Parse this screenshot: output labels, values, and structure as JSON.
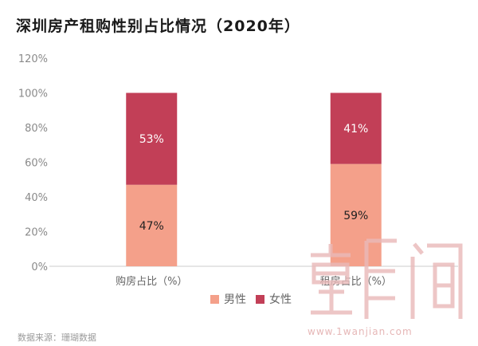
{
  "title": "深圳房产租购性别占比情况（2020年）",
  "source": "数据来源：珊瑚数据",
  "watermark_url": "www.1wanjian.com",
  "colors": {
    "male": "#f4a08a",
    "female": "#c23f57",
    "axis": "#cccccc"
  },
  "legend": [
    {
      "name": "男性",
      "color": "#f4a08a"
    },
    {
      "name": "女性",
      "color": "#c23f57"
    }
  ],
  "chart_data": {
    "type": "bar",
    "stacked": true,
    "categories": [
      "购房占比（%）",
      "租房占比（%）"
    ],
    "series": [
      {
        "name": "男性",
        "values": [
          47,
          59
        ],
        "labels": [
          "47%",
          "59%"
        ]
      },
      {
        "name": "女性",
        "values": [
          53,
          41
        ],
        "labels": [
          "53%",
          "41%"
        ]
      }
    ],
    "ylim": [
      0,
      120
    ],
    "yticks": [
      "0%",
      "20%",
      "40%",
      "60%",
      "80%",
      "100%",
      "120%"
    ],
    "legend_position": "bottom",
    "grid": false
  }
}
